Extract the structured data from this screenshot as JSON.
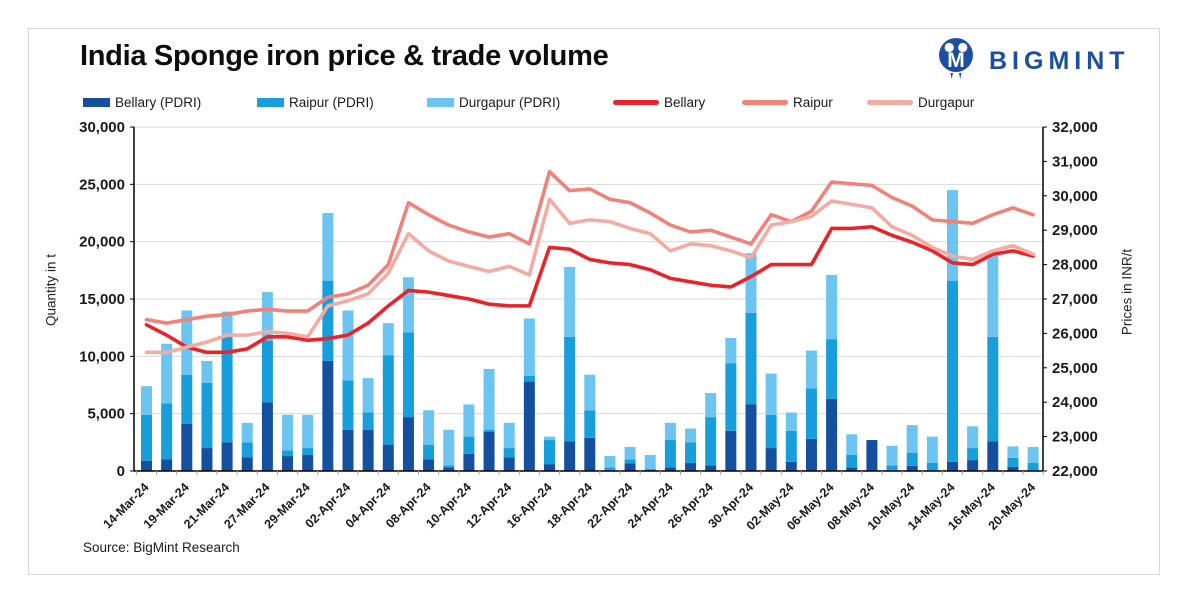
{
  "logo": {
    "text": "BIGMINT"
  },
  "chart_data": {
    "type": "bar+line",
    "title": "India Sponge iron price & trade volume",
    "source": "Source: BigMint Research",
    "y_left": {
      "label": "Quantity in t",
      "min": 0,
      "max": 30000,
      "step": 5000
    },
    "y_right": {
      "label": "Prices in INR/t",
      "min": 22000,
      "max": 32000,
      "step": 1000
    },
    "x_labels": [
      "14-Mar-24",
      "19-Mar-24",
      "21-Mar-24",
      "27-Mar-24",
      "29-Mar-24",
      "02-Apr-24",
      "04-Apr-24",
      "08-Apr-24",
      "10-Apr-24",
      "12-Apr-24",
      "16-Apr-24",
      "18-Apr-24",
      "22-Apr-24",
      "24-Apr-24",
      "26-Apr-24",
      "30-Apr-24",
      "02-May-24",
      "06-May-24",
      "08-May-24",
      "10-May-24",
      "14-May-24",
      "16-May-24",
      "20-May-24"
    ],
    "label_every_n_bars": 2,
    "bar_series": [
      {
        "name": "Bellary (PDRI)",
        "color": "#15509e",
        "values": [
          900,
          1000,
          4100,
          2000,
          2500,
          1200,
          6000,
          1300,
          1400,
          9600,
          3600,
          3600,
          2300,
          4700,
          1000,
          300,
          1500,
          3400,
          1200,
          7800,
          600,
          2600,
          2900,
          100,
          650,
          100,
          300,
          700,
          500,
          3500,
          5800,
          2000,
          800,
          2800,
          6300,
          300,
          2700,
          0,
          450,
          0,
          800,
          950,
          2600,
          350,
          0
        ]
      },
      {
        "name": "Raipur (PDRI)",
        "color": "#189fdb",
        "values": [
          4000,
          4900,
          4300,
          5700,
          9200,
          1300,
          5400,
          500,
          600,
          7000,
          4300,
          1500,
          7800,
          7400,
          1300,
          200,
          1500,
          200,
          800,
          500,
          2100,
          9100,
          2400,
          200,
          350,
          100,
          2400,
          1800,
          4200,
          5900,
          8000,
          2900,
          2700,
          4400,
          5200,
          1100,
          0,
          500,
          1150,
          700,
          15800,
          1050,
          9100,
          800,
          700
        ]
      },
      {
        "name": "Durgapur (PDRI)",
        "color": "#6cc5f0",
        "values": [
          2500,
          5200,
          5600,
          1900,
          2200,
          1700,
          4200,
          3100,
          2900,
          5900,
          6100,
          3000,
          2800,
          4800,
          3000,
          3100,
          2800,
          5300,
          2200,
          5000,
          300,
          6100,
          3100,
          1000,
          1100,
          1200,
          1500,
          1200,
          2100,
          2200,
          5200,
          3600,
          1600,
          3300,
          5600,
          1800,
          0,
          1700,
          2400,
          2300,
          7900,
          1900,
          7300,
          1000,
          1400
        ]
      }
    ],
    "line_series": [
      {
        "name": "Bellary",
        "color": "#e8242a",
        "values": [
          26250,
          25950,
          25600,
          25450,
          25450,
          25550,
          25900,
          25900,
          25800,
          25850,
          25950,
          26300,
          26800,
          27250,
          27200,
          27100,
          27000,
          26850,
          26800,
          26800,
          28500,
          28450,
          28150,
          28050,
          28000,
          27850,
          27600,
          27500,
          27400,
          27350,
          27650,
          28000,
          28000,
          28000,
          29050,
          29050,
          29100,
          28850,
          28650,
          28400,
          28050,
          28000,
          28300,
          28400,
          28250
        ]
      },
      {
        "name": "Raipur",
        "color": "#f0827a",
        "values": [
          26400,
          26300,
          26400,
          26500,
          26550,
          26650,
          26700,
          26650,
          26650,
          27050,
          27150,
          27400,
          28000,
          29800,
          29450,
          29150,
          28950,
          28800,
          28900,
          28600,
          30700,
          30150,
          30200,
          29900,
          29800,
          29500,
          29150,
          28950,
          29000,
          28800,
          28600,
          29450,
          29250,
          29550,
          30400,
          30350,
          30300,
          29950,
          29700,
          29300,
          29250,
          29200,
          29450,
          29650,
          29450
        ]
      },
      {
        "name": "Durgapur",
        "color": "#f3aba3",
        "values": [
          25450,
          25450,
          25600,
          25750,
          25950,
          25950,
          26050,
          26000,
          25900,
          26800,
          26950,
          27150,
          27750,
          28900,
          28400,
          28100,
          27950,
          27800,
          27950,
          27700,
          29900,
          29200,
          29300,
          29250,
          29050,
          28900,
          28400,
          28600,
          28550,
          28400,
          28200,
          29150,
          29250,
          29400,
          29850,
          29750,
          29650,
          29100,
          28850,
          28500,
          28250,
          28150,
          28400,
          28550,
          28300
        ]
      }
    ]
  }
}
